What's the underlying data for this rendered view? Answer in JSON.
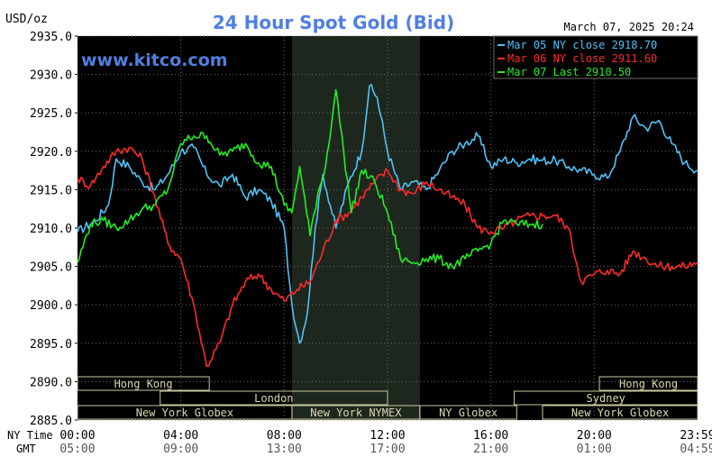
{
  "header": {
    "unit_label": "USD/oz",
    "title": "24 Hour Spot Gold (Bid)",
    "timestamp": "March 07, 2025 20:24",
    "watermark": "www.kitco.com"
  },
  "colors": {
    "background": "#000000",
    "grid": "#6b6b6b",
    "axis_text": "#ffffff",
    "title": "#4f7fe0",
    "watermark": "#4f7fe0",
    "nymex_shade": "#1e271e",
    "session_border": "#c8c8a0",
    "session_text": "#d8d8b0",
    "mar05": "#4fc3f7",
    "mar06": "#ff2a2a",
    "mar07": "#22ee22"
  },
  "sessions": [
    {
      "label": "Hong Kong",
      "row": 0
    },
    {
      "label": "Hong Kong",
      "row": 0
    },
    {
      "label": "London",
      "row": 1
    },
    {
      "label": "Sydney",
      "row": 1
    },
    {
      "label": "New York Globex",
      "row": 2
    },
    {
      "label": "New York NYMEX",
      "row": 2
    },
    {
      "label": "NY Globex",
      "row": 2
    },
    {
      "label": "New York Globex",
      "row": 2
    }
  ],
  "bottom_axis": {
    "ny_label": "NY Time",
    "gmt_label": "GMT"
  },
  "chart_data": {
    "type": "line",
    "title": "24 Hour Spot Gold (Bid)",
    "ylabel": "USD/oz",
    "xlabel": "",
    "ylim": [
      2885.0,
      2935.0
    ],
    "xlim": [
      0,
      24
    ],
    "y_ticks": [
      "2935.0",
      "2930.0",
      "2925.0",
      "2920.0",
      "2915.0",
      "2910.0",
      "2905.0",
      "2900.0",
      "2895.0",
      "2890.0",
      "2885.0"
    ],
    "x_ticks_ny": [
      "00:00",
      "04:00",
      "08:00",
      "12:00",
      "16:00",
      "20:00",
      "23:59"
    ],
    "x_ticks_gmt": [
      "05:00",
      "09:00",
      "13:00",
      "17:00",
      "21:00",
      "01:00",
      "04:59"
    ],
    "grid": true,
    "legend_position": "top-right",
    "legend": [
      {
        "label": "Mar 05 NY close 2918.70",
        "series": 0
      },
      {
        "label": "Mar 06 NY close 2911.60",
        "series": 1
      },
      {
        "label": "Mar 07 Last 2910.50",
        "series": 2
      }
    ],
    "series": [
      {
        "name": "Mar 05 NY close 2918.70",
        "x": [
          0,
          0.7,
          1.2,
          1.5,
          2,
          2.5,
          3,
          3.5,
          4,
          4.5,
          5,
          5.5,
          6,
          6.5,
          7,
          7.5,
          8,
          8.3,
          8.6,
          8.9,
          9.2,
          9.5,
          10,
          10.5,
          11,
          11.3,
          11.6,
          12,
          12.5,
          13,
          13.5,
          14,
          14.5,
          15,
          15.5,
          16,
          16.5,
          17,
          17.5,
          18,
          18.5,
          19,
          19.5,
          20,
          20.5,
          21,
          21.5,
          22,
          22.5,
          23,
          23.5,
          24
        ],
        "y": [
          2909.5,
          2911.0,
          2913.0,
          2919.0,
          2918.0,
          2916.0,
          2915.0,
          2917.0,
          2920.0,
          2920.5,
          2917.0,
          2915.5,
          2917.0,
          2914.0,
          2915.0,
          2913.5,
          2910.0,
          2900.0,
          2895.0,
          2899.0,
          2910.0,
          2917.0,
          2910.0,
          2916.0,
          2920.0,
          2928.5,
          2927.0,
          2920.0,
          2915.0,
          2916.0,
          2915.0,
          2917.5,
          2920.0,
          2921.0,
          2922.0,
          2918.0,
          2919.0,
          2918.5,
          2919.0,
          2918.8,
          2918.8,
          2918.0,
          2917.5,
          2917.0,
          2916.5,
          2920.0,
          2924.5,
          2923.0,
          2924.0,
          2921.0,
          2918.5,
          2917.5
        ]
      },
      {
        "name": "Mar 06 NY close 2911.60",
        "x": [
          0,
          0.5,
          1,
          1.5,
          2,
          2.5,
          3,
          3.5,
          4,
          4.5,
          5,
          5.5,
          6,
          6.5,
          7,
          7.5,
          8,
          8.5,
          9,
          9.5,
          10,
          10.5,
          11,
          11.5,
          12,
          12.5,
          13,
          13.5,
          14,
          14.5,
          15,
          15.5,
          16,
          16.5,
          17,
          17.5,
          18,
          18.5,
          19,
          19.5,
          20,
          20.5,
          21,
          21.5,
          22,
          22.5,
          23,
          23.5,
          24
        ],
        "y": [
          2916.5,
          2915.5,
          2918.0,
          2920.0,
          2920.5,
          2919.0,
          2914.0,
          2908.0,
          2906.0,
          2900.0,
          2892.0,
          2895.0,
          2900.0,
          2903.0,
          2904.0,
          2902.0,
          2900.5,
          2902.0,
          2903.0,
          2907.0,
          2911.0,
          2912.0,
          2914.0,
          2916.0,
          2917.5,
          2915.0,
          2914.5,
          2916.0,
          2915.0,
          2914.0,
          2913.0,
          2910.0,
          2909.5,
          2910.0,
          2911.0,
          2911.6,
          2911.6,
          2911.6,
          2910.0,
          2903.0,
          2904.0,
          2904.5,
          2904.0,
          2907.0,
          2906.0,
          2905.0,
          2905.0,
          2905.0,
          2905.5
        ]
      },
      {
        "name": "Mar 07 Last 2910.50",
        "x": [
          0,
          0.5,
          1,
          1.5,
          2,
          2.5,
          3,
          3.5,
          4,
          4.5,
          5,
          5.5,
          6,
          6.5,
          7,
          7.5,
          8,
          8.3,
          8.6,
          9,
          9.3,
          9.6,
          10,
          10.3,
          10.6,
          11,
          11.5,
          12,
          12.5,
          13,
          13.5,
          14,
          14.5,
          15,
          15.5,
          16,
          16.5,
          17,
          17.5,
          18
        ],
        "y": [
          2905.5,
          2910.5,
          2911.0,
          2910.0,
          2911.0,
          2912.5,
          2913.0,
          2915.0,
          2921.0,
          2922.0,
          2922.0,
          2919.5,
          2920.0,
          2921.0,
          2918.5,
          2918.0,
          2913.0,
          2912.0,
          2918.0,
          2909.0,
          2914.5,
          2918.0,
          2928.0,
          2920.0,
          2912.0,
          2917.5,
          2916.0,
          2912.0,
          2906.0,
          2905.5,
          2906.0,
          2906.0,
          2905.0,
          2906.0,
          2907.0,
          2908.0,
          2911.0,
          2910.5,
          2910.5,
          2910.5
        ]
      }
    ]
  }
}
